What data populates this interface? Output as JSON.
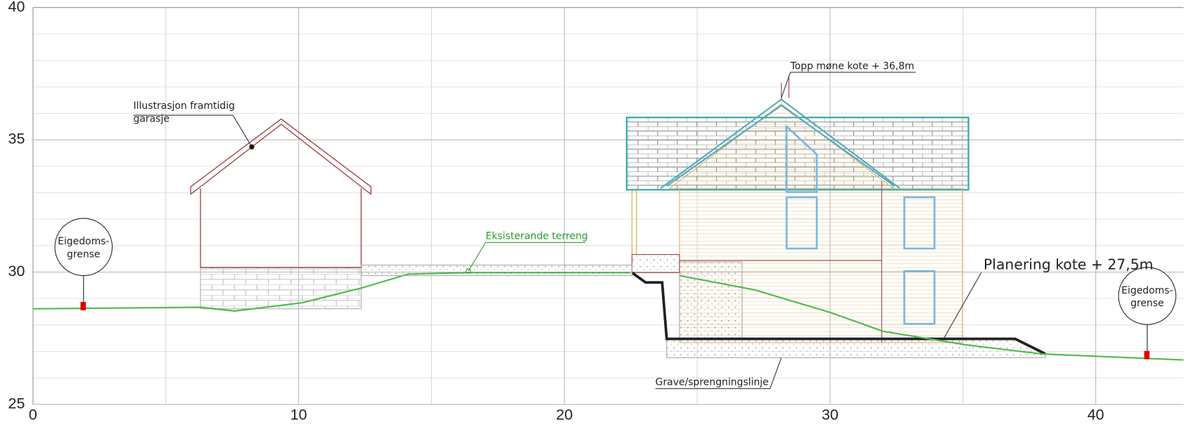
{
  "axes": {
    "xlim": [
      0,
      43.3
    ],
    "ylim": [
      25,
      40
    ],
    "xticks": [
      0,
      10,
      20,
      30,
      40
    ],
    "yticks": [
      25,
      30,
      35,
      40
    ],
    "grid": true
  },
  "labels": {
    "garage": [
      "Illustrasjon framtidig",
      "garasje"
    ],
    "boundary_left": [
      "Eigedoms-",
      "grense"
    ],
    "boundary_right": [
      "Eigedoms-",
      "grense"
    ],
    "terrain": "Eksisterande terreng",
    "ridge": "Topp møne kote + 36,8m",
    "grading": "Planering kote + 27,5m",
    "excavation": "Grave/sprengningslinje"
  }
}
